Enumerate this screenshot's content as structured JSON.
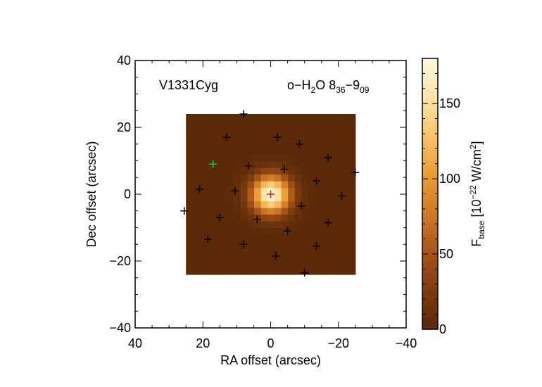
{
  "chart_data": {
    "type": "heatmap",
    "object_label": "V1331Cyg",
    "line_label": {
      "prefix": "o−H",
      "sub1": "2",
      "mid": "O 8",
      "sub2": "36",
      "dash": "−9",
      "sub3": "09"
    },
    "xlabel": "RA offset (arcsec)",
    "ylabel": "Dec offset (arcsec)",
    "xlim": [
      40,
      -40
    ],
    "ylim": [
      -40,
      40
    ],
    "xticks": [
      40,
      20,
      0,
      -20,
      -40
    ],
    "xtick_labels": [
      "40",
      "20",
      "0",
      "−20",
      "−40"
    ],
    "yticks": [
      40,
      20,
      0,
      -20,
      -40
    ],
    "ytick_labels": [
      "40",
      "20",
      "0",
      "−20",
      "−40"
    ],
    "map_extent": {
      "x": [
        25,
        -25
      ],
      "y": [
        -24,
        24
      ]
    },
    "pixel_size": 2,
    "peak_position": [
      0,
      0
    ],
    "peak_value": 180,
    "fwhm": 9.4,
    "colorbar": {
      "label_main": "F",
      "label_sub": "base",
      "label_rest_pre": " [10",
      "label_sup1": "−22",
      "label_rest_mid": " W/cm",
      "label_sup2": "2",
      "label_rest_post": "]",
      "range": [
        0,
        180
      ],
      "ticks": [
        0,
        50,
        100,
        150
      ],
      "tick_labels": [
        "0",
        "50",
        "100",
        "150"
      ],
      "colormap": [
        "#5a2a08",
        "#7d3c0e",
        "#a8551a",
        "#cf7a25",
        "#ec9a33",
        "#f9c46a",
        "#fde3a8",
        "#fffadf"
      ]
    },
    "spaxels": [
      {
        "x": 0,
        "y": 0,
        "color": "#d41c1c"
      },
      {
        "x": 17,
        "y": 9,
        "color": "#19d119"
      },
      {
        "x": 8,
        "y": 24,
        "color": "#000000"
      },
      {
        "x": 13,
        "y": 17,
        "color": "#000000"
      },
      {
        "x": -2,
        "y": 17,
        "color": "#000000"
      },
      {
        "x": -8.5,
        "y": 15,
        "color": "#000000"
      },
      {
        "x": -17,
        "y": 11,
        "color": "#000000"
      },
      {
        "x": 6.5,
        "y": 8.5,
        "color": "#000000"
      },
      {
        "x": -4,
        "y": 7.5,
        "color": "#000000"
      },
      {
        "x": -25,
        "y": 6.5,
        "color": "#000000"
      },
      {
        "x": 21,
        "y": 1.5,
        "color": "#000000"
      },
      {
        "x": 10.5,
        "y": 1,
        "color": "#000000"
      },
      {
        "x": -13.5,
        "y": 4,
        "color": "#000000"
      },
      {
        "x": -21,
        "y": -0.5,
        "color": "#000000"
      },
      {
        "x": 25.5,
        "y": -5,
        "color": "#000000"
      },
      {
        "x": 15,
        "y": -7,
        "color": "#000000"
      },
      {
        "x": 4,
        "y": -7.5,
        "color": "#000000"
      },
      {
        "x": -9,
        "y": -3.5,
        "color": "#000000"
      },
      {
        "x": -17,
        "y": -8.5,
        "color": "#000000"
      },
      {
        "x": -5,
        "y": -11,
        "color": "#000000"
      },
      {
        "x": 18.5,
        "y": -13.5,
        "color": "#000000"
      },
      {
        "x": 8,
        "y": -15,
        "color": "#000000"
      },
      {
        "x": -13.5,
        "y": -15.5,
        "color": "#000000"
      },
      {
        "x": -1.5,
        "y": -18.5,
        "color": "#000000"
      },
      {
        "x": -10,
        "y": -23.5,
        "color": "#000000"
      }
    ]
  }
}
